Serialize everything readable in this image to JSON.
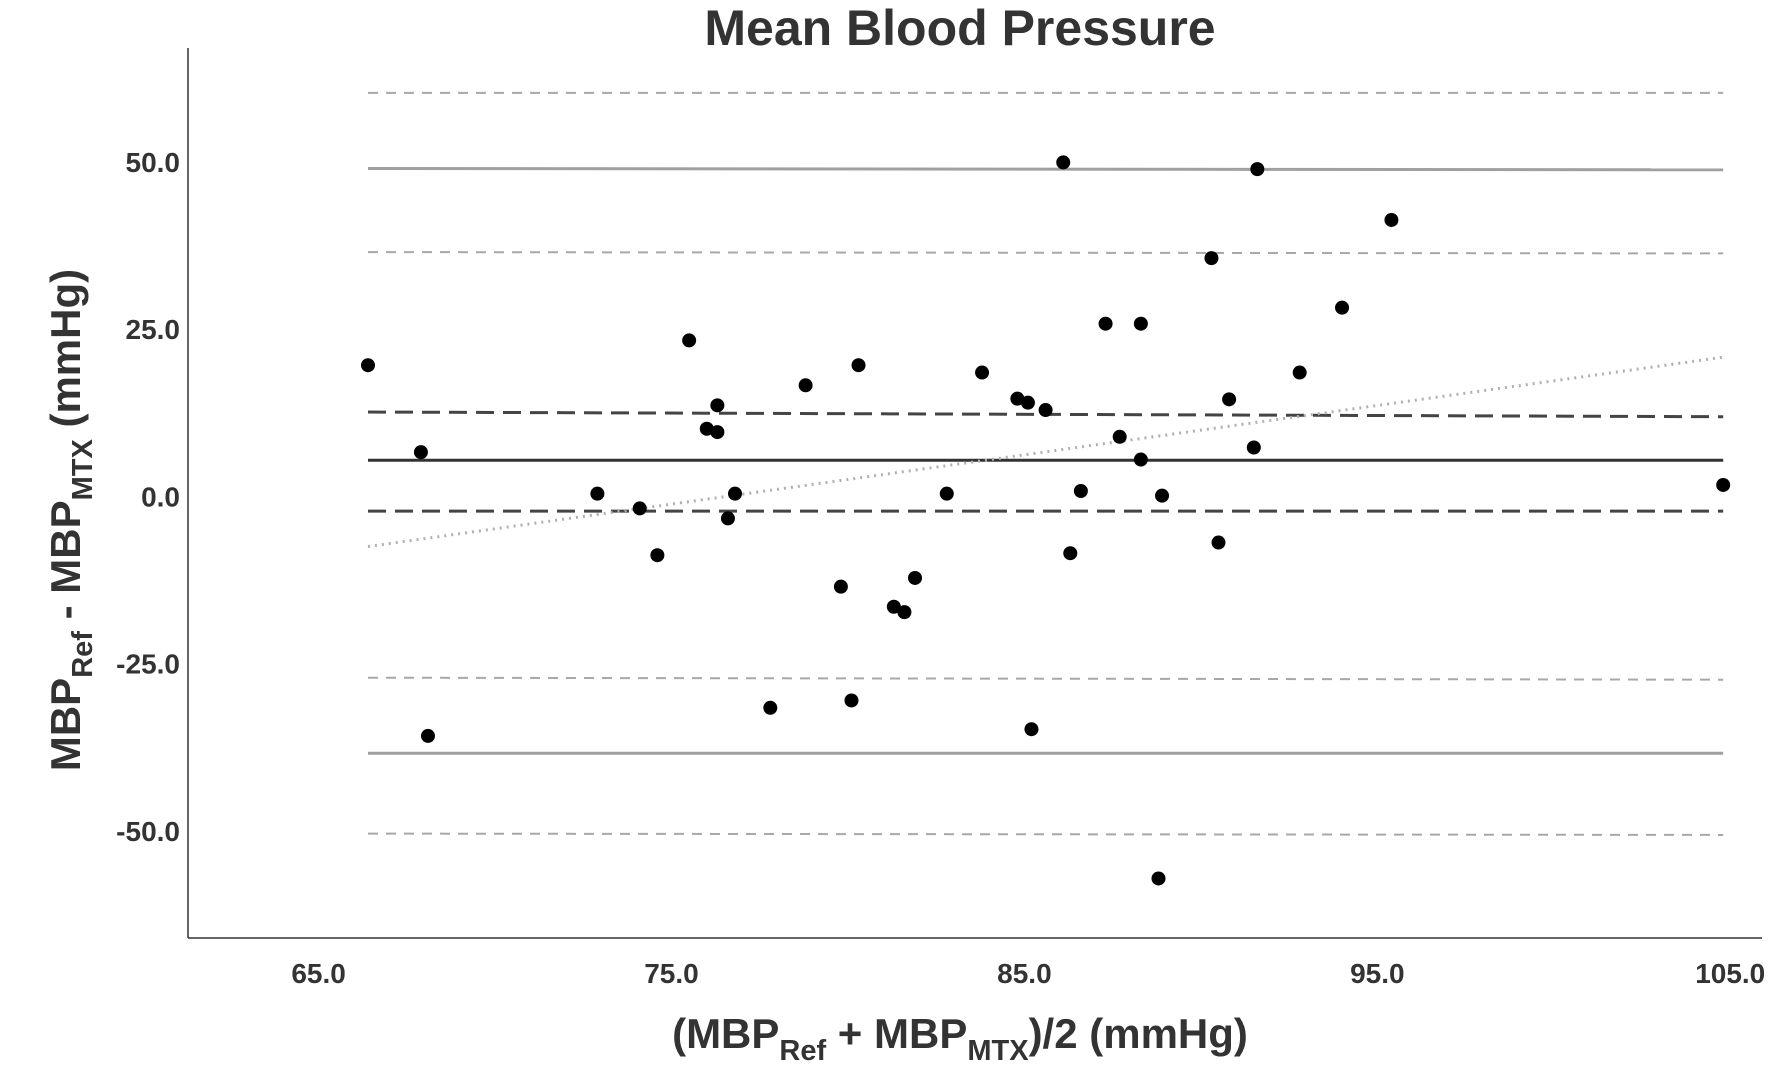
{
  "chart_data": {
    "type": "scatter",
    "title": "Mean Blood Pressure",
    "xlabel": {
      "main": "(MBP",
      "sub1": "Ref",
      "mid": " + MBP",
      "sub2": "MTX",
      "end": ")/2 (mmHg)"
    },
    "ylabel": {
      "main": "MBP",
      "sub1": "Ref",
      "mid": " - MBP",
      "sub2": "MTX",
      "end": " (mmHg)"
    },
    "xlim": [
      61.3,
      105.9
    ],
    "ylim": [
      -66.0,
      67.0
    ],
    "x_ticks": [
      65,
      75,
      85,
      95,
      105
    ],
    "x_tick_labels": [
      "65.0",
      "75.0",
      "85.0",
      "95.0",
      "105.0"
    ],
    "y_ticks": [
      50,
      25,
      0,
      -25,
      -50
    ],
    "y_tick_labels": [
      "50.0",
      "25.0",
      "0.0",
      "-25.0",
      "-50.0"
    ],
    "grid": false,
    "points": [
      {
        "x": 66.4,
        "y": 19.6
      },
      {
        "x": 67.9,
        "y": 6.6
      },
      {
        "x": 68.1,
        "y": -35.8
      },
      {
        "x": 72.9,
        "y": 0.4
      },
      {
        "x": 74.1,
        "y": -1.8
      },
      {
        "x": 74.6,
        "y": -8.8
      },
      {
        "x": 75.5,
        "y": 23.3
      },
      {
        "x": 76.0,
        "y": 10.1
      },
      {
        "x": 76.3,
        "y": 13.6
      },
      {
        "x": 76.3,
        "y": 9.6
      },
      {
        "x": 76.6,
        "y": -3.3
      },
      {
        "x": 76.8,
        "y": 0.4
      },
      {
        "x": 77.8,
        "y": -31.6
      },
      {
        "x": 78.8,
        "y": 16.6
      },
      {
        "x": 79.8,
        "y": -13.5
      },
      {
        "x": 80.1,
        "y": -30.5
      },
      {
        "x": 80.3,
        "y": 19.6
      },
      {
        "x": 81.3,
        "y": -16.5
      },
      {
        "x": 81.6,
        "y": -17.3
      },
      {
        "x": 81.9,
        "y": -12.2
      },
      {
        "x": 82.8,
        "y": 0.4
      },
      {
        "x": 83.8,
        "y": 18.5
      },
      {
        "x": 84.8,
        "y": 14.6
      },
      {
        "x": 85.1,
        "y": 14.0
      },
      {
        "x": 85.2,
        "y": -34.8
      },
      {
        "x": 85.6,
        "y": 12.9
      },
      {
        "x": 86.1,
        "y": 49.9
      },
      {
        "x": 86.3,
        "y": -8.5
      },
      {
        "x": 86.6,
        "y": 0.8
      },
      {
        "x": 87.3,
        "y": 25.8
      },
      {
        "x": 87.7,
        "y": 8.9
      },
      {
        "x": 88.3,
        "y": 25.8
      },
      {
        "x": 88.3,
        "y": 5.5
      },
      {
        "x": 88.8,
        "y": -57.1
      },
      {
        "x": 88.9,
        "y": 0.1
      },
      {
        "x": 90.3,
        "y": 35.6
      },
      {
        "x": 90.5,
        "y": -6.9
      },
      {
        "x": 90.8,
        "y": 14.5
      },
      {
        "x": 91.5,
        "y": 7.3
      },
      {
        "x": 91.6,
        "y": 48.9
      },
      {
        "x": 92.8,
        "y": 18.5
      },
      {
        "x": 94.0,
        "y": 28.2
      },
      {
        "x": 95.4,
        "y": 41.3
      },
      {
        "x": 104.8,
        "y": 1.7
      }
    ],
    "reference_lines": [
      {
        "role": "bias",
        "x": [
          66.4,
          104.8
        ],
        "y": [
          5.4,
          5.4
        ],
        "style": "solid",
        "color": "#333333"
      },
      {
        "role": "bias-ci-upper",
        "x": [
          66.4,
          104.8
        ],
        "y": [
          12.6,
          11.9
        ],
        "style": "dashed",
        "color": "#444444"
      },
      {
        "role": "bias-ci-lower",
        "x": [
          66.4,
          104.8
        ],
        "y": [
          -2.2,
          -2.2
        ],
        "style": "dashed",
        "color": "#444444"
      },
      {
        "role": "upper-loa",
        "x": [
          66.4,
          104.8
        ],
        "y": [
          49.0,
          48.8
        ],
        "style": "solid",
        "color": "#a0a0a0"
      },
      {
        "role": "upper-loa-ci-upper",
        "x": [
          66.4,
          104.8
        ],
        "y": [
          60.3,
          60.3
        ],
        "style": "dashed-light",
        "color": "#a8a8a8"
      },
      {
        "role": "upper-loa-ci-lower",
        "x": [
          66.4,
          104.8
        ],
        "y": [
          36.5,
          36.3
        ],
        "style": "dashed-light",
        "color": "#a8a8a8"
      },
      {
        "role": "lower-loa",
        "x": [
          66.4,
          104.8
        ],
        "y": [
          -38.4,
          -38.4
        ],
        "style": "solid",
        "color": "#a0a0a0"
      },
      {
        "role": "lower-loa-ci-upper",
        "x": [
          66.4,
          104.8
        ],
        "y": [
          -27.1,
          -27.4
        ],
        "style": "dashed-light",
        "color": "#a8a8a8"
      },
      {
        "role": "lower-loa-ci-lower",
        "x": [
          66.4,
          104.8
        ],
        "y": [
          -50.4,
          -50.6
        ],
        "style": "dashed-light",
        "color": "#a8a8a8"
      },
      {
        "role": "regression",
        "x": [
          66.4,
          104.8
        ],
        "y": [
          -7.5,
          20.8
        ],
        "style": "dotted",
        "color": "#b0b0b0"
      }
    ]
  }
}
